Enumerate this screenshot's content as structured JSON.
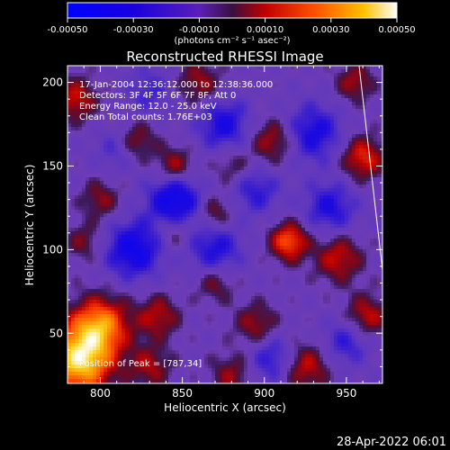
{
  "chart_data": {
    "type": "heatmap",
    "title": "Reconstructed RHESSI Image",
    "xlabel": "Heliocentric X (arcsec)",
    "ylabel": "Heliocentric Y (arcsec)",
    "xlim": [
      780,
      972
    ],
    "ylim": [
      20,
      210
    ],
    "x_ticks": [
      800,
      850,
      900,
      950
    ],
    "y_ticks": [
      50,
      100,
      150,
      200
    ],
    "colorbar": {
      "range": [
        -0.0005,
        0.0005
      ],
      "ticks": [
        "-0.00050",
        "-0.00030",
        "-0.00010",
        "0.00010",
        "0.00030",
        "0.00050"
      ],
      "unit_label": "(photons cm⁻² s⁻¹ asec⁻²)"
    },
    "annotations": [
      "17-Jan-2004 12:36:12.000 to 12:38:36.000",
      "Detectors: 3F 4F 5F 6F 7F 8F, Att 0",
      "Energy Range: 12.0 - 25.0 keV",
      "Clean     Total counts: 1.76E+03"
    ],
    "peak_label": "Position of Peak = [787,34]",
    "timestamp": "28-Apr-2022 06:01",
    "blobs": [
      {
        "x": 787,
        "y": 34,
        "v": 0.0005,
        "s": 14
      },
      {
        "x": 800,
        "y": 55,
        "v": 0.00036,
        "s": 12
      },
      {
        "x": 785,
        "y": 190,
        "v": 0.00022,
        "s": 9
      },
      {
        "x": 800,
        "y": 130,
        "v": 0.00016,
        "s": 8
      },
      {
        "x": 790,
        "y": 105,
        "v": 0.00014,
        "s": 8
      },
      {
        "x": 822,
        "y": 165,
        "v": 0.00018,
        "s": 8
      },
      {
        "x": 845,
        "y": 150,
        "v": 0.0002,
        "s": 8
      },
      {
        "x": 835,
        "y": 60,
        "v": 0.0002,
        "s": 9
      },
      {
        "x": 830,
        "y": 30,
        "v": 0.00018,
        "s": 9
      },
      {
        "x": 845,
        "y": 110,
        "v": 0.00012,
        "s": 7
      },
      {
        "x": 870,
        "y": 80,
        "v": 0.00015,
        "s": 8
      },
      {
        "x": 870,
        "y": 122,
        "v": 0.00016,
        "s": 7
      },
      {
        "x": 880,
        "y": 150,
        "v": 0.00012,
        "s": 8
      },
      {
        "x": 895,
        "y": 55,
        "v": 0.00018,
        "s": 9
      },
      {
        "x": 915,
        "y": 105,
        "v": 0.00032,
        "s": 8
      },
      {
        "x": 905,
        "y": 165,
        "v": 0.0002,
        "s": 9
      },
      {
        "x": 925,
        "y": 30,
        "v": 0.00022,
        "s": 10
      },
      {
        "x": 945,
        "y": 95,
        "v": 0.00022,
        "s": 10
      },
      {
        "x": 960,
        "y": 155,
        "v": 0.00026,
        "s": 9
      },
      {
        "x": 955,
        "y": 200,
        "v": 0.00018,
        "s": 8
      },
      {
        "x": 962,
        "y": 60,
        "v": 0.00022,
        "s": 9
      },
      {
        "x": 860,
        "y": 200,
        "v": 0.00018,
        "s": 9
      },
      {
        "x": 880,
        "y": 25,
        "v": 0.00016,
        "s": 9
      },
      {
        "x": 820,
        "y": 100,
        "v": -0.0003,
        "s": 12
      },
      {
        "x": 845,
        "y": 130,
        "v": -0.00032,
        "s": 11
      },
      {
        "x": 870,
        "y": 100,
        "v": -0.00022,
        "s": 11
      },
      {
        "x": 875,
        "y": 175,
        "v": -0.00024,
        "s": 11
      },
      {
        "x": 930,
        "y": 170,
        "v": -0.00024,
        "s": 12
      },
      {
        "x": 940,
        "y": 125,
        "v": -0.00022,
        "s": 11
      },
      {
        "x": 895,
        "y": 135,
        "v": -0.00018,
        "s": 10
      },
      {
        "x": 905,
        "y": 35,
        "v": -0.0002,
        "s": 10
      },
      {
        "x": 950,
        "y": 45,
        "v": -0.00018,
        "s": 10
      },
      {
        "x": 830,
        "y": 195,
        "v": -0.00014,
        "s": 10
      },
      {
        "x": 810,
        "y": 160,
        "v": -0.00012,
        "s": 9
      }
    ]
  }
}
